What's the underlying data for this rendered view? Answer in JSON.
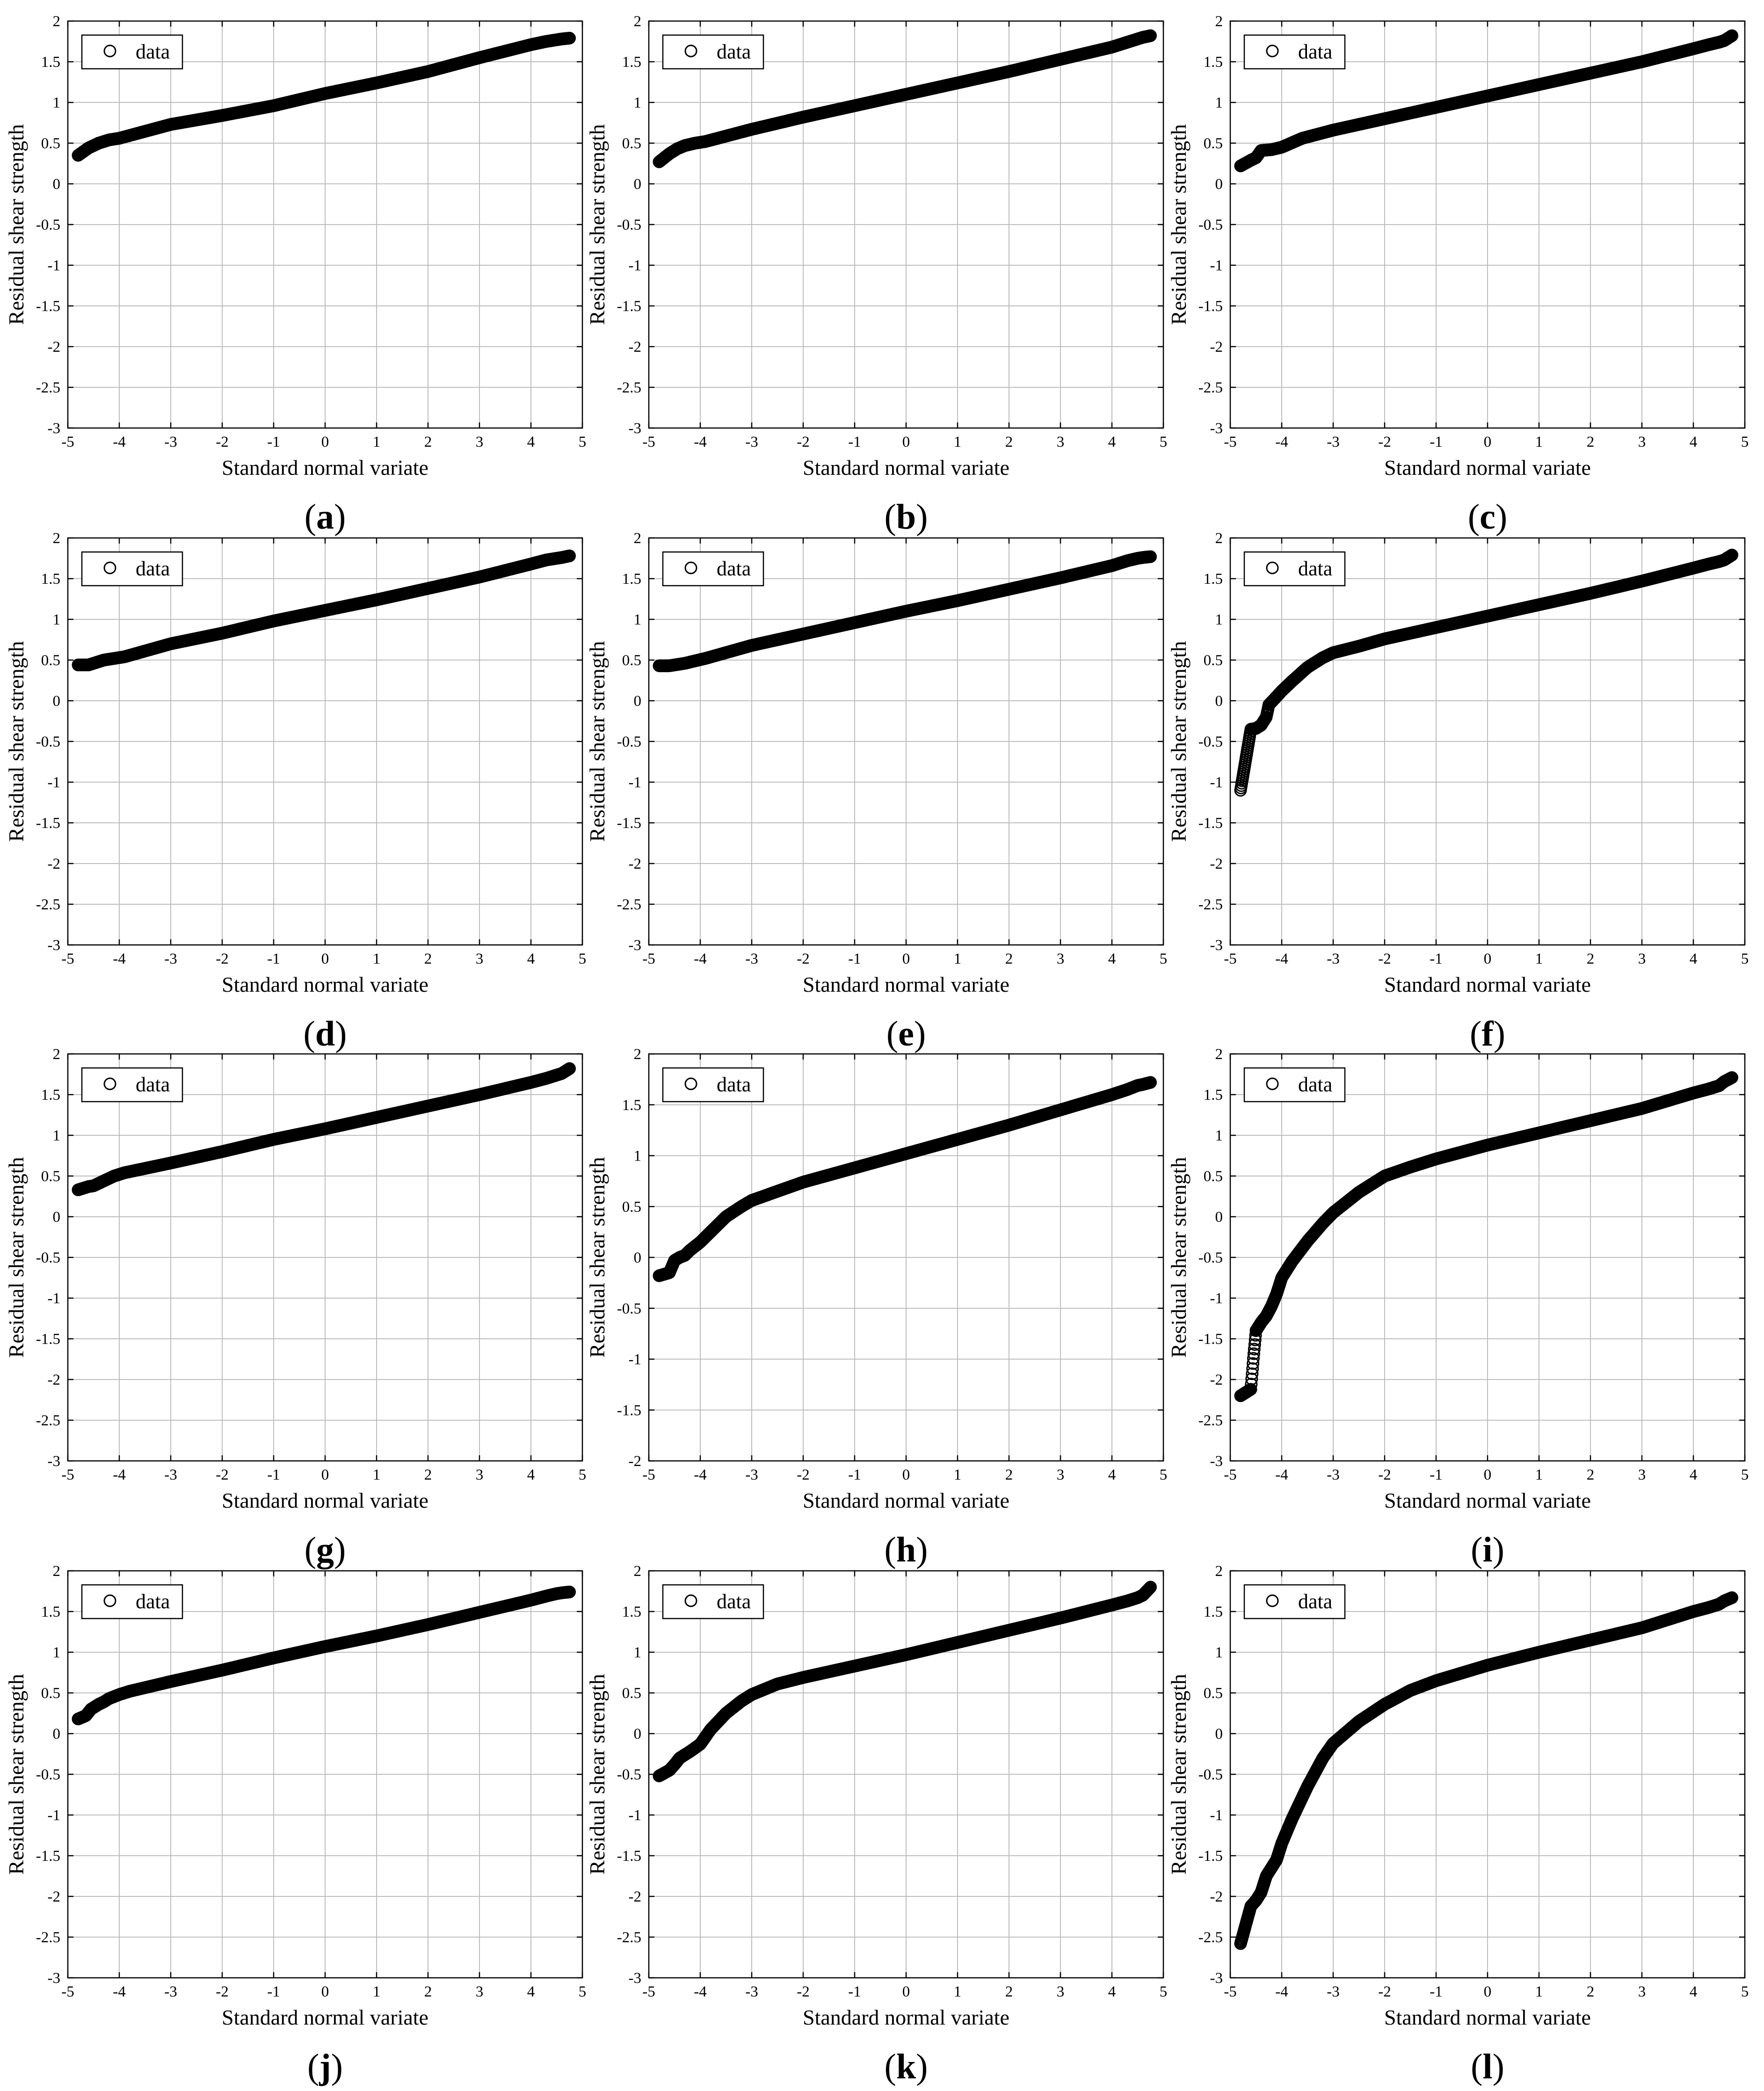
{
  "figure": {
    "xlabel": "Standard normal variate",
    "ylabel": "Residual shear strength",
    "legend_label": "data",
    "marker": "open-circle",
    "colors": {
      "axes": "#000000",
      "grid": "#bdbdbd",
      "marker": "#000000",
      "background": "#ffffff"
    }
  },
  "chart_data": [
    {
      "type": "scatter",
      "panel_label": "a",
      "xlim": [
        -5,
        5
      ],
      "ylim": [
        -3,
        2
      ],
      "xticks": [
        -5,
        -4,
        -3,
        -2,
        -1,
        0,
        1,
        2,
        3,
        4,
        5
      ],
      "yticks": [
        2,
        1.5,
        1,
        0.5,
        0,
        -0.5,
        -1,
        -1.5,
        -2,
        -2.5,
        -3
      ],
      "grid": true,
      "legend": "top-left",
      "points": [
        [
          -4.8,
          0.35
        ],
        [
          -4.6,
          0.44
        ],
        [
          -4.5,
          0.47
        ],
        [
          -4.4,
          0.5
        ],
        [
          -4.3,
          0.52
        ],
        [
          -4.2,
          0.54
        ],
        [
          -4.0,
          0.56
        ],
        [
          -3,
          0.73
        ],
        [
          -2,
          0.84
        ],
        [
          -1,
          0.96
        ],
        [
          0,
          1.11
        ],
        [
          1,
          1.24
        ],
        [
          2,
          1.38
        ],
        [
          3,
          1.55
        ],
        [
          4,
          1.71
        ],
        [
          4.3,
          1.75
        ],
        [
          4.5,
          1.77
        ],
        [
          4.6,
          1.78
        ],
        [
          4.75,
          1.79
        ]
      ]
    },
    {
      "type": "scatter",
      "panel_label": "b",
      "xlim": [
        -5,
        5
      ],
      "ylim": [
        -3,
        2
      ],
      "xticks": [
        -5,
        -4,
        -3,
        -2,
        -1,
        0,
        1,
        2,
        3,
        4,
        5
      ],
      "yticks": [
        2,
        1.5,
        1,
        0.5,
        0,
        -0.5,
        -1,
        -1.5,
        -2,
        -2.5,
        -3
      ],
      "grid": true,
      "legend": "top-left",
      "points": [
        [
          -4.8,
          0.27
        ],
        [
          -4.6,
          0.37
        ],
        [
          -4.45,
          0.43
        ],
        [
          -4.3,
          0.47
        ],
        [
          -4.1,
          0.5
        ],
        [
          -3.9,
          0.52
        ],
        [
          -3,
          0.67
        ],
        [
          -2,
          0.82
        ],
        [
          -1,
          0.96
        ],
        [
          0,
          1.1
        ],
        [
          1,
          1.24
        ],
        [
          2,
          1.38
        ],
        [
          3,
          1.53
        ],
        [
          4,
          1.68
        ],
        [
          4.3,
          1.74
        ],
        [
          4.5,
          1.78
        ],
        [
          4.6,
          1.8
        ],
        [
          4.75,
          1.82
        ]
      ]
    },
    {
      "type": "scatter",
      "panel_label": "c",
      "xlim": [
        -5,
        5
      ],
      "ylim": [
        -3,
        2
      ],
      "xticks": [
        -5,
        -4,
        -3,
        -2,
        -1,
        0,
        1,
        2,
        3,
        4,
        5
      ],
      "yticks": [
        2,
        1.5,
        1,
        0.5,
        0,
        -0.5,
        -1,
        -1.5,
        -2,
        -2.5,
        -3
      ],
      "grid": true,
      "legend": "top-left",
      "points": [
        [
          -4.8,
          0.22
        ],
        [
          -4.6,
          0.29
        ],
        [
          -4.5,
          0.32
        ],
        [
          -4.4,
          0.41
        ],
        [
          -4.2,
          0.42
        ],
        [
          -4.0,
          0.45
        ],
        [
          -3.6,
          0.56
        ],
        [
          -3,
          0.66
        ],
        [
          -2,
          0.8
        ],
        [
          -1,
          0.94
        ],
        [
          0,
          1.08
        ],
        [
          1,
          1.22
        ],
        [
          2,
          1.36
        ],
        [
          3,
          1.5
        ],
        [
          4,
          1.66
        ],
        [
          4.3,
          1.71
        ],
        [
          4.5,
          1.74
        ],
        [
          4.6,
          1.76
        ],
        [
          4.75,
          1.82
        ]
      ]
    },
    {
      "type": "scatter",
      "panel_label": "d",
      "xlim": [
        -5,
        5
      ],
      "ylim": [
        -3,
        2
      ],
      "xticks": [
        -5,
        -4,
        -3,
        -2,
        -1,
        0,
        1,
        2,
        3,
        4,
        5
      ],
      "yticks": [
        2,
        1.5,
        1,
        0.5,
        0,
        -0.5,
        -1,
        -1.5,
        -2,
        -2.5,
        -3
      ],
      "grid": true,
      "legend": "top-left",
      "points": [
        [
          -4.8,
          0.44
        ],
        [
          -4.6,
          0.44
        ],
        [
          -4.5,
          0.46
        ],
        [
          -4.3,
          0.5
        ],
        [
          -4.1,
          0.52
        ],
        [
          -3.9,
          0.54
        ],
        [
          -3,
          0.7
        ],
        [
          -2,
          0.83
        ],
        [
          -1,
          0.98
        ],
        [
          0,
          1.11
        ],
        [
          1,
          1.24
        ],
        [
          2,
          1.38
        ],
        [
          3,
          1.52
        ],
        [
          4,
          1.68
        ],
        [
          4.3,
          1.73
        ],
        [
          4.5,
          1.75
        ],
        [
          4.6,
          1.76
        ],
        [
          4.75,
          1.78
        ]
      ]
    },
    {
      "type": "scatter",
      "panel_label": "e",
      "xlim": [
        -5,
        5
      ],
      "ylim": [
        -3,
        2
      ],
      "xticks": [
        -5,
        -4,
        -3,
        -2,
        -1,
        0,
        1,
        2,
        3,
        4,
        5
      ],
      "yticks": [
        2,
        1.5,
        1,
        0.5,
        0,
        -0.5,
        -1,
        -1.5,
        -2,
        -2.5,
        -3
      ],
      "grid": true,
      "legend": "top-left",
      "points": [
        [
          -4.8,
          0.43
        ],
        [
          -4.6,
          0.43
        ],
        [
          -4.5,
          0.44
        ],
        [
          -4.3,
          0.46
        ],
        [
          -4.1,
          0.49
        ],
        [
          -3.9,
          0.52
        ],
        [
          -3,
          0.68
        ],
        [
          -2,
          0.82
        ],
        [
          -1,
          0.96
        ],
        [
          0,
          1.1
        ],
        [
          1,
          1.23
        ],
        [
          2,
          1.37
        ],
        [
          3,
          1.51
        ],
        [
          4,
          1.66
        ],
        [
          4.3,
          1.72
        ],
        [
          4.5,
          1.75
        ],
        [
          4.6,
          1.76
        ],
        [
          4.75,
          1.77
        ]
      ]
    },
    {
      "type": "scatter",
      "panel_label": "f",
      "xlim": [
        -5,
        5
      ],
      "ylim": [
        -3,
        2
      ],
      "xticks": [
        -5,
        -4,
        -3,
        -2,
        -1,
        0,
        1,
        2,
        3,
        4,
        5
      ],
      "yticks": [
        2,
        1.5,
        1,
        0.5,
        0,
        -0.5,
        -1,
        -1.5,
        -2,
        -2.5,
        -3
      ],
      "grid": true,
      "legend": "top-left",
      "points": [
        [
          -4.8,
          -1.1
        ],
        [
          -4.6,
          -0.35
        ],
        [
          -4.5,
          -0.34
        ],
        [
          -4.4,
          -0.3
        ],
        [
          -4.3,
          -0.2
        ],
        [
          -4.25,
          -0.05
        ],
        [
          -4.1,
          0.05
        ],
        [
          -4.0,
          0.12
        ],
        [
          -3.8,
          0.24
        ],
        [
          -3.5,
          0.41
        ],
        [
          -3.2,
          0.53
        ],
        [
          -3,
          0.59
        ],
        [
          -2.5,
          0.67
        ],
        [
          -2,
          0.76
        ],
        [
          -1,
          0.9
        ],
        [
          0,
          1.04
        ],
        [
          1,
          1.18
        ],
        [
          2,
          1.32
        ],
        [
          3,
          1.47
        ],
        [
          4,
          1.63
        ],
        [
          4.3,
          1.68
        ],
        [
          4.5,
          1.71
        ],
        [
          4.6,
          1.73
        ],
        [
          4.75,
          1.79
        ]
      ]
    },
    {
      "type": "scatter",
      "panel_label": "g",
      "xlim": [
        -5,
        5
      ],
      "ylim": [
        -3,
        2
      ],
      "xticks": [
        -5,
        -4,
        -3,
        -2,
        -1,
        0,
        1,
        2,
        3,
        4,
        5
      ],
      "yticks": [
        2,
        1.5,
        1,
        0.5,
        0,
        -0.5,
        -1,
        -1.5,
        -2,
        -2.5,
        -3
      ],
      "grid": true,
      "legend": "top-left",
      "points": [
        [
          -4.8,
          0.33
        ],
        [
          -4.6,
          0.37
        ],
        [
          -4.5,
          0.38
        ],
        [
          -4.4,
          0.41
        ],
        [
          -4.3,
          0.44
        ],
        [
          -4.1,
          0.5
        ],
        [
          -3.9,
          0.54
        ],
        [
          -3,
          0.66
        ],
        [
          -2,
          0.8
        ],
        [
          -1,
          0.95
        ],
        [
          0,
          1.08
        ],
        [
          1,
          1.22
        ],
        [
          2,
          1.36
        ],
        [
          3,
          1.5
        ],
        [
          4,
          1.65
        ],
        [
          4.3,
          1.7
        ],
        [
          4.5,
          1.74
        ],
        [
          4.6,
          1.76
        ],
        [
          4.75,
          1.82
        ]
      ]
    },
    {
      "type": "scatter",
      "panel_label": "h",
      "xlim": [
        -5,
        5
      ],
      "ylim": [
        -2,
        2
      ],
      "xticks": [
        -5,
        -4,
        -3,
        -2,
        -1,
        0,
        1,
        2,
        3,
        4,
        5
      ],
      "yticks": [
        2,
        1.5,
        1,
        0.5,
        0,
        -0.5,
        -1,
        -1.5,
        -2
      ],
      "grid": true,
      "legend": "top-left",
      "points": [
        [
          -4.8,
          -0.18
        ],
        [
          -4.6,
          -0.15
        ],
        [
          -4.5,
          -0.03
        ],
        [
          -4.4,
          0.0
        ],
        [
          -4.3,
          0.02
        ],
        [
          -4.2,
          0.07
        ],
        [
          -4.0,
          0.15
        ],
        [
          -3.8,
          0.25
        ],
        [
          -3.5,
          0.4
        ],
        [
          -3.2,
          0.5
        ],
        [
          -3,
          0.56
        ],
        [
          -2.5,
          0.65
        ],
        [
          -2,
          0.74
        ],
        [
          -1,
          0.88
        ],
        [
          0,
          1.02
        ],
        [
          1,
          1.16
        ],
        [
          2,
          1.3
        ],
        [
          3,
          1.45
        ],
        [
          4,
          1.6
        ],
        [
          4.3,
          1.65
        ],
        [
          4.5,
          1.69
        ],
        [
          4.6,
          1.7
        ],
        [
          4.75,
          1.72
        ]
      ]
    },
    {
      "type": "scatter",
      "panel_label": "i",
      "xlim": [
        -5,
        5
      ],
      "ylim": [
        -3,
        2
      ],
      "xticks": [
        -5,
        -4,
        -3,
        -2,
        -1,
        0,
        1,
        2,
        3,
        4,
        5
      ],
      "yticks": [
        2,
        1.5,
        1,
        0.5,
        0,
        -0.5,
        -1,
        -1.5,
        -2,
        -2.5,
        -3
      ],
      "grid": true,
      "legend": "top-left",
      "points": [
        [
          -4.8,
          -2.2
        ],
        [
          -4.6,
          -2.12
        ],
        [
          -4.55,
          -1.74
        ],
        [
          -4.5,
          -1.4
        ],
        [
          -4.4,
          -1.3
        ],
        [
          -4.3,
          -1.22
        ],
        [
          -4.2,
          -1.1
        ],
        [
          -4.1,
          -0.95
        ],
        [
          -4.0,
          -0.75
        ],
        [
          -3.8,
          -0.55
        ],
        [
          -3.5,
          -0.3
        ],
        [
          -3.2,
          -0.08
        ],
        [
          -3,
          0.05
        ],
        [
          -2.5,
          0.3
        ],
        [
          -2,
          0.5
        ],
        [
          -1.5,
          0.61
        ],
        [
          -1,
          0.71
        ],
        [
          0,
          0.88
        ],
        [
          1,
          1.03
        ],
        [
          2,
          1.18
        ],
        [
          3,
          1.33
        ],
        [
          4,
          1.52
        ],
        [
          4.3,
          1.57
        ],
        [
          4.5,
          1.61
        ],
        [
          4.6,
          1.66
        ],
        [
          4.75,
          1.71
        ]
      ]
    },
    {
      "type": "scatter",
      "panel_label": "j",
      "xlim": [
        -5,
        5
      ],
      "ylim": [
        -3,
        2
      ],
      "xticks": [
        -5,
        -4,
        -3,
        -2,
        -1,
        0,
        1,
        2,
        3,
        4,
        5
      ],
      "yticks": [
        2,
        1.5,
        1,
        0.5,
        0,
        -0.5,
        -1,
        -1.5,
        -2,
        -2.5,
        -3
      ],
      "grid": true,
      "legend": "top-left",
      "points": [
        [
          -4.8,
          0.18
        ],
        [
          -4.65,
          0.22
        ],
        [
          -4.55,
          0.3
        ],
        [
          -4.4,
          0.36
        ],
        [
          -4.3,
          0.39
        ],
        [
          -4.2,
          0.43
        ],
        [
          -4.0,
          0.48
        ],
        [
          -3.8,
          0.52
        ],
        [
          -3,
          0.64
        ],
        [
          -2,
          0.78
        ],
        [
          -1,
          0.93
        ],
        [
          0,
          1.07
        ],
        [
          1,
          1.2
        ],
        [
          2,
          1.34
        ],
        [
          3,
          1.49
        ],
        [
          4,
          1.64
        ],
        [
          4.3,
          1.69
        ],
        [
          4.5,
          1.72
        ],
        [
          4.6,
          1.73
        ],
        [
          4.75,
          1.74
        ]
      ]
    },
    {
      "type": "scatter",
      "panel_label": "k",
      "xlim": [
        -5,
        5
      ],
      "ylim": [
        -3,
        2
      ],
      "xticks": [
        -5,
        -4,
        -3,
        -2,
        -1,
        0,
        1,
        2,
        3,
        4,
        5
      ],
      "yticks": [
        2,
        1.5,
        1,
        0.5,
        0,
        -0.5,
        -1,
        -1.5,
        -2,
        -2.5,
        -3
      ],
      "grid": true,
      "legend": "top-left",
      "points": [
        [
          -4.8,
          -0.52
        ],
        [
          -4.6,
          -0.45
        ],
        [
          -4.5,
          -0.38
        ],
        [
          -4.4,
          -0.3
        ],
        [
          -4.3,
          -0.26
        ],
        [
          -4.2,
          -0.22
        ],
        [
          -4.0,
          -0.13
        ],
        [
          -3.8,
          0.05
        ],
        [
          -3.5,
          0.25
        ],
        [
          -3.2,
          0.4
        ],
        [
          -3,
          0.48
        ],
        [
          -2.5,
          0.61
        ],
        [
          -2,
          0.69
        ],
        [
          -1,
          0.83
        ],
        [
          0,
          0.97
        ],
        [
          1,
          1.12
        ],
        [
          2,
          1.27
        ],
        [
          3,
          1.42
        ],
        [
          4,
          1.58
        ],
        [
          4.3,
          1.63
        ],
        [
          4.5,
          1.67
        ],
        [
          4.6,
          1.7
        ],
        [
          4.75,
          1.8
        ]
      ]
    },
    {
      "type": "scatter",
      "panel_label": "l",
      "xlim": [
        -5,
        5
      ],
      "ylim": [
        -3,
        2
      ],
      "xticks": [
        -5,
        -4,
        -3,
        -2,
        -1,
        0,
        1,
        2,
        3,
        4,
        5
      ],
      "yticks": [
        2,
        1.5,
        1,
        0.5,
        0,
        -0.5,
        -1,
        -1.5,
        -2,
        -2.5,
        -3
      ],
      "grid": true,
      "legend": "top-left",
      "points": [
        [
          -4.8,
          -2.58
        ],
        [
          -4.6,
          -2.12
        ],
        [
          -4.5,
          -2.05
        ],
        [
          -4.4,
          -1.95
        ],
        [
          -4.3,
          -1.75
        ],
        [
          -4.2,
          -1.65
        ],
        [
          -4.1,
          -1.55
        ],
        [
          -4.0,
          -1.35
        ],
        [
          -3.8,
          -1.05
        ],
        [
          -3.5,
          -0.65
        ],
        [
          -3.2,
          -0.3
        ],
        [
          -3,
          -0.12
        ],
        [
          -2.5,
          0.15
        ],
        [
          -2,
          0.36
        ],
        [
          -1.5,
          0.53
        ],
        [
          -1,
          0.65
        ],
        [
          0,
          0.84
        ],
        [
          1,
          1.0
        ],
        [
          2,
          1.15
        ],
        [
          3,
          1.3
        ],
        [
          4,
          1.5
        ],
        [
          4.3,
          1.55
        ],
        [
          4.5,
          1.59
        ],
        [
          4.6,
          1.63
        ],
        [
          4.75,
          1.67
        ]
      ]
    }
  ]
}
